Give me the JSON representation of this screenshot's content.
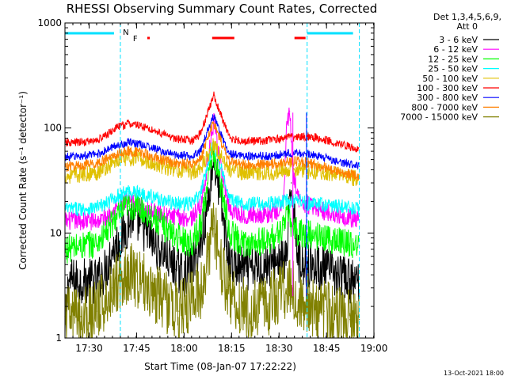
{
  "chart_data": {
    "type": "line",
    "title": "RHESSI Observing Summary Count Rates, Corrected",
    "ylabel": "Corrected Count Rate (s⁻¹ detector⁻¹)",
    "xlabel": "Start Time (08-Jan-07 17:22:22)",
    "y_scale": "log",
    "ylim": [
      1,
      1000
    ],
    "y_ticks": [
      1,
      10,
      100,
      1000
    ],
    "y_tick_labels": [
      "1",
      "10",
      "100",
      "1000"
    ],
    "xlim_minutes": [
      0,
      97.6
    ],
    "x_ticks_minutes": [
      7.633,
      22.633,
      37.633,
      52.633,
      67.633,
      82.633,
      97.633
    ],
    "x_tick_labels": [
      "17:30",
      "17:45",
      "18:00",
      "18:15",
      "18:30",
      "18:45",
      "19:00"
    ],
    "legend": {
      "header": [
        "Det 1,3,4,5,6,9,",
        "Att 0"
      ],
      "placement": "right-outside"
    },
    "series": [
      {
        "name": "3 - 6 keV",
        "color": "#000000",
        "points": [
          [
            0,
            1
          ],
          [
            1,
            3.5
          ],
          [
            10,
            3.5
          ],
          [
            13,
            4.5
          ],
          [
            15,
            7
          ],
          [
            18,
            9
          ],
          [
            21,
            14
          ],
          [
            24,
            12
          ],
          [
            28,
            8
          ],
          [
            32,
            6
          ],
          [
            35,
            4.5
          ],
          [
            38,
            4
          ],
          [
            42,
            6
          ],
          [
            45,
            18
          ],
          [
            47,
            52
          ],
          [
            49,
            22
          ],
          [
            52,
            5
          ],
          [
            56,
            4.5
          ],
          [
            60,
            4.5
          ],
          [
            64,
            5
          ],
          [
            67,
            5.5
          ],
          [
            70,
            5.5
          ],
          [
            71.5,
            30
          ],
          [
            74,
            5
          ],
          [
            78,
            5
          ],
          [
            82,
            4.5
          ],
          [
            86,
            4
          ],
          [
            90,
            3.5
          ],
          [
            92.5,
            3.5
          ],
          [
            93,
            2.5
          ]
        ]
      },
      {
        "name": "6 - 12 keV",
        "color": "#ff00ff",
        "points": [
          [
            0,
            13
          ],
          [
            5,
            13
          ],
          [
            10,
            13
          ],
          [
            13,
            14
          ],
          [
            16,
            17
          ],
          [
            20,
            20
          ],
          [
            24,
            18
          ],
          [
            28,
            16
          ],
          [
            32,
            14.5
          ],
          [
            36,
            14
          ],
          [
            40,
            14
          ],
          [
            43,
            18
          ],
          [
            45,
            45
          ],
          [
            47,
            115
          ],
          [
            49,
            45
          ],
          [
            52,
            17
          ],
          [
            56,
            15
          ],
          [
            60,
            15
          ],
          [
            64,
            15
          ],
          [
            67,
            16
          ],
          [
            69,
            18
          ],
          [
            70,
            100
          ],
          [
            71,
            145
          ],
          [
            72,
            40
          ],
          [
            74,
            20
          ],
          [
            78,
            18
          ],
          [
            82,
            16
          ],
          [
            86,
            15
          ],
          [
            90,
            14
          ],
          [
            93,
            13
          ]
        ]
      },
      {
        "name": "12 - 25 keV",
        "color": "#00ff00",
        "points": [
          [
            0,
            7
          ],
          [
            5,
            7.5
          ],
          [
            10,
            8
          ],
          [
            13,
            10
          ],
          [
            16,
            14
          ],
          [
            20,
            18
          ],
          [
            24,
            17
          ],
          [
            28,
            14
          ],
          [
            32,
            11
          ],
          [
            36,
            9
          ],
          [
            40,
            8
          ],
          [
            43,
            12
          ],
          [
            45,
            30
          ],
          [
            47,
            58
          ],
          [
            49,
            30
          ],
          [
            52,
            10
          ],
          [
            56,
            8
          ],
          [
            60,
            8
          ],
          [
            64,
            8.5
          ],
          [
            67,
            9.5
          ],
          [
            69,
            12
          ],
          [
            70.5,
            15
          ],
          [
            72,
            11
          ],
          [
            74,
            10
          ],
          [
            78,
            9.5
          ],
          [
            82,
            9
          ],
          [
            86,
            8.5
          ],
          [
            90,
            8
          ],
          [
            93,
            7.5
          ]
        ]
      },
      {
        "name": "25 - 50 keV",
        "color": "#00ffff",
        "points": [
          [
            0,
            17
          ],
          [
            5,
            17
          ],
          [
            10,
            17.5
          ],
          [
            13,
            19
          ],
          [
            16,
            22
          ],
          [
            20,
            25
          ],
          [
            24,
            24
          ],
          [
            28,
            22
          ],
          [
            32,
            20
          ],
          [
            36,
            19
          ],
          [
            40,
            19
          ],
          [
            43,
            24
          ],
          [
            45,
            45
          ],
          [
            47,
            72
          ],
          [
            49,
            45
          ],
          [
            52,
            21
          ],
          [
            56,
            19
          ],
          [
            60,
            19
          ],
          [
            64,
            19
          ],
          [
            67,
            19.5
          ],
          [
            70,
            20
          ],
          [
            72,
            20
          ],
          [
            74,
            20
          ],
          [
            78,
            19
          ],
          [
            82,
            18.5
          ],
          [
            86,
            18
          ],
          [
            90,
            17.5
          ],
          [
            93,
            17
          ]
        ]
      },
      {
        "name": "50 - 100 keV",
        "color": "#e0c000",
        "points": [
          [
            0,
            35
          ],
          [
            5,
            36
          ],
          [
            10,
            38
          ],
          [
            13,
            42
          ],
          [
            16,
            48
          ],
          [
            20,
            52
          ],
          [
            24,
            50
          ],
          [
            28,
            46
          ],
          [
            32,
            42
          ],
          [
            36,
            40
          ],
          [
            40,
            38
          ],
          [
            43,
            42
          ],
          [
            45,
            55
          ],
          [
            47,
            70
          ],
          [
            49,
            55
          ],
          [
            52,
            40
          ],
          [
            56,
            38
          ],
          [
            60,
            38
          ],
          [
            64,
            38
          ],
          [
            67,
            38
          ],
          [
            70,
            40
          ],
          [
            72,
            40
          ],
          [
            74,
            40
          ],
          [
            78,
            39
          ],
          [
            82,
            38
          ],
          [
            86,
            36
          ],
          [
            90,
            34
          ],
          [
            93,
            33
          ]
        ]
      },
      {
        "name": "100 - 300 keV",
        "color": "#ff0000",
        "points": [
          [
            0,
            72
          ],
          [
            5,
            73
          ],
          [
            10,
            76
          ],
          [
            13,
            85
          ],
          [
            16,
            100
          ],
          [
            20,
            110
          ],
          [
            24,
            105
          ],
          [
            28,
            95
          ],
          [
            32,
            85
          ],
          [
            36,
            78
          ],
          [
            40,
            75
          ],
          [
            43,
            90
          ],
          [
            45,
            140
          ],
          [
            47,
            205
          ],
          [
            49,
            140
          ],
          [
            52,
            80
          ],
          [
            56,
            75
          ],
          [
            60,
            75
          ],
          [
            64,
            76
          ],
          [
            67,
            78
          ],
          [
            70,
            82
          ],
          [
            72,
            82
          ],
          [
            74,
            84
          ],
          [
            78,
            82
          ],
          [
            82,
            78
          ],
          [
            86,
            72
          ],
          [
            90,
            66
          ],
          [
            93,
            62
          ]
        ]
      },
      {
        "name": "300 - 800 keV",
        "color": "#0000ff",
        "points": [
          [
            0,
            53
          ],
          [
            5,
            54
          ],
          [
            10,
            56
          ],
          [
            13,
            61
          ],
          [
            16,
            68
          ],
          [
            20,
            73
          ],
          [
            24,
            70
          ],
          [
            28,
            64
          ],
          [
            32,
            58
          ],
          [
            36,
            55
          ],
          [
            40,
            54
          ],
          [
            43,
            62
          ],
          [
            45,
            95
          ],
          [
            47,
            130
          ],
          [
            49,
            90
          ],
          [
            52,
            57
          ],
          [
            56,
            54
          ],
          [
            60,
            54
          ],
          [
            64,
            54
          ],
          [
            67,
            55
          ],
          [
            70,
            57
          ],
          [
            72,
            57
          ],
          [
            74,
            58
          ],
          [
            78,
            56
          ],
          [
            82,
            52
          ],
          [
            86,
            48
          ],
          [
            90,
            45
          ],
          [
            93,
            43
          ]
        ]
      },
      {
        "name": "800 - 7000 keV",
        "color": "#ff8000",
        "points": [
          [
            0,
            43
          ],
          [
            5,
            44
          ],
          [
            10,
            46
          ],
          [
            13,
            50
          ],
          [
            16,
            56
          ],
          [
            20,
            60
          ],
          [
            24,
            58
          ],
          [
            28,
            53
          ],
          [
            32,
            48
          ],
          [
            36,
            46
          ],
          [
            40,
            45
          ],
          [
            43,
            52
          ],
          [
            45,
            80
          ],
          [
            47,
            112
          ],
          [
            49,
            78
          ],
          [
            52,
            48
          ],
          [
            56,
            45
          ],
          [
            60,
            45
          ],
          [
            64,
            45
          ],
          [
            67,
            46
          ],
          [
            70,
            48
          ],
          [
            72,
            48
          ],
          [
            74,
            48
          ],
          [
            78,
            46
          ],
          [
            82,
            42
          ],
          [
            86,
            39
          ],
          [
            90,
            36
          ],
          [
            93,
            34
          ]
        ]
      },
      {
        "name": "7000 - 15000 keV",
        "color": "#808000",
        "points": [
          [
            0,
            1.6
          ],
          [
            5,
            1.6
          ],
          [
            10,
            1.8
          ],
          [
            13,
            2.4
          ],
          [
            15,
            3
          ],
          [
            18,
            4
          ],
          [
            21,
            4.2
          ],
          [
            24,
            3.5
          ],
          [
            28,
            2.8
          ],
          [
            32,
            2.2
          ],
          [
            36,
            1.8
          ],
          [
            40,
            2.2
          ],
          [
            43,
            3
          ],
          [
            45,
            6
          ],
          [
            47,
            11
          ],
          [
            49,
            6
          ],
          [
            51,
            3
          ],
          [
            53,
            2.5
          ],
          [
            56,
            2
          ],
          [
            60,
            1.8
          ],
          [
            64,
            2
          ],
          [
            67,
            2.5
          ],
          [
            70,
            2.8
          ],
          [
            72,
            2.8
          ],
          [
            74,
            2.4
          ],
          [
            78,
            2
          ],
          [
            82,
            1.8
          ],
          [
            86,
            1.6
          ],
          [
            90,
            1.5
          ],
          [
            93,
            1.5
          ]
        ]
      }
    ],
    "annotations": {
      "flags": [
        {
          "label": "N",
          "color": "#00e0ff"
        },
        {
          "label": "F",
          "color": "#ff0000"
        }
      ],
      "night_intervals_minutes": [
        [
          0,
          17.5
        ],
        [
          76.5,
          93
        ]
      ],
      "night_boundaries_minutes": [
        17.5,
        76.5,
        93
      ],
      "flare_intervals_minutes": [
        [
          26,
          26.8
        ],
        [
          46.5,
          53.5
        ],
        [
          72.5,
          76
        ]
      ],
      "attenuator_markers_minutes": [
        72,
        76.3
      ],
      "attenuator_colors": [
        "#ff00ff",
        "#0000ff"
      ],
      "boundary_color": "#00e0ff"
    },
    "grid": false
  },
  "footer": {
    "stamp": "13-Oct-2021 18:00"
  }
}
